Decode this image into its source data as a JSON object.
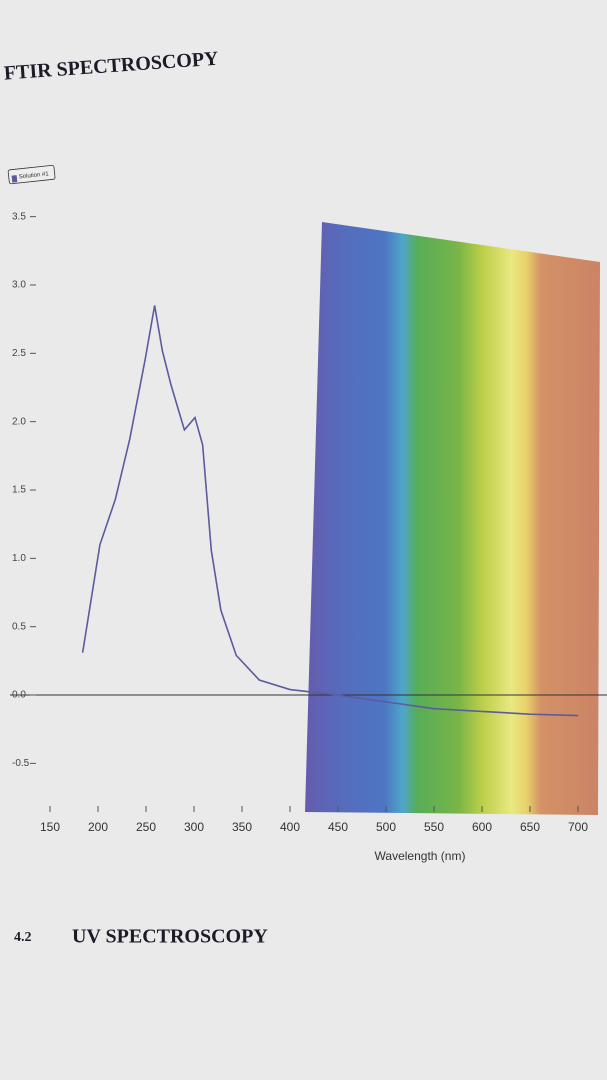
{
  "heading": "FTIR SPECTROSCOPY",
  "section": {
    "number": "4.2",
    "title": "UV SPECTROSCOPY"
  },
  "chart_data": {
    "type": "line",
    "x_label": "Wavelength (nm)",
    "x": [
      184,
      202,
      218,
      233,
      249,
      259,
      267,
      276,
      290,
      301,
      309,
      318,
      328,
      344,
      368,
      400,
      450,
      500,
      550,
      600,
      650,
      700
    ],
    "series": [
      {
        "name": "Solution #1",
        "color": "#5b5b9e",
        "values": [
          0.31,
          1.1,
          1.43,
          1.87,
          2.45,
          2.85,
          2.52,
          2.27,
          1.94,
          2.03,
          1.83,
          1.06,
          0.62,
          0.29,
          0.11,
          0.04,
          0.0,
          -0.05,
          -0.1,
          -0.12,
          -0.14,
          -0.15
        ]
      }
    ],
    "xlim": [
      140,
      710
    ],
    "xticks": [
      150,
      200,
      250,
      300,
      350,
      400,
      450,
      500,
      550,
      600,
      650,
      700
    ],
    "ylim": [
      -0.7,
      3.7
    ],
    "yticks": [
      3.5,
      {
        "value": 3.0,
        "label": "3.0"
      },
      2.5,
      {
        "value": 2.0,
        "label": "2.0"
      },
      1.5,
      {
        "value": 1.0,
        "label": "1.0"
      },
      0.5,
      {
        "value": 0.0,
        "label": "0.0"
      },
      -0.5
    ],
    "legend": "upper left"
  }
}
